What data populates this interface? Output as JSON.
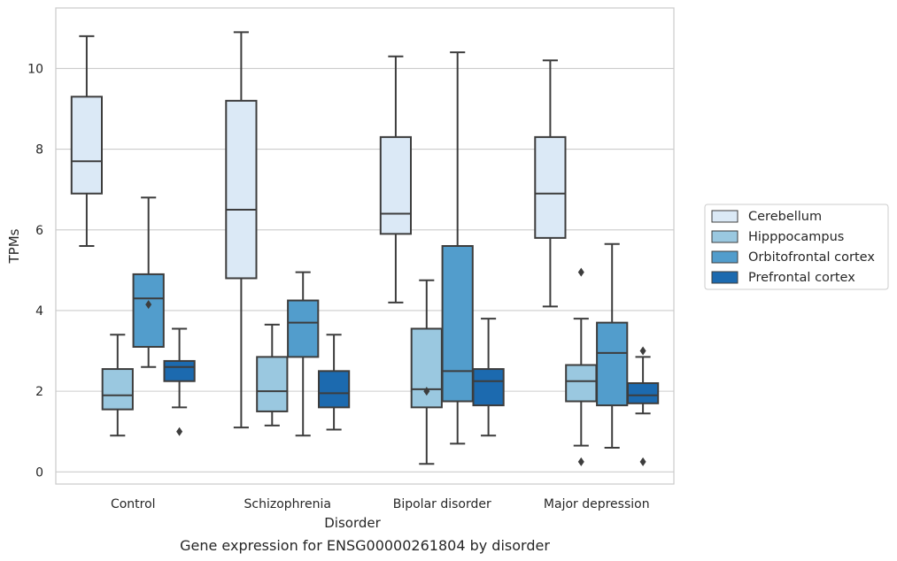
{
  "chart_data": {
    "type": "box",
    "title": "Gene expression for ENSG00000261804 by disorder",
    "xlabel": "Disorder",
    "ylabel": "TPMs",
    "ylim": [
      -0.3,
      11.5
    ],
    "yticks": [
      0,
      2,
      4,
      6,
      8,
      10
    ],
    "grid": "horizontal",
    "legend_position": "right",
    "categories": [
      "Control",
      "Schizophrenia",
      "Bipolar disorder",
      "Major depression"
    ],
    "series": [
      {
        "name": "Cerebellum",
        "color": "#dbe9f6",
        "boxes": [
          {
            "whislo": 5.6,
            "q1": 6.9,
            "med": 7.7,
            "q3": 9.3,
            "whishi": 10.8,
            "fliers": []
          },
          {
            "whislo": 1.1,
            "q1": 4.8,
            "med": 6.5,
            "q3": 9.2,
            "whishi": 10.9,
            "fliers": []
          },
          {
            "whislo": 4.2,
            "q1": 5.9,
            "med": 6.4,
            "q3": 8.3,
            "whishi": 10.3,
            "fliers": []
          },
          {
            "whislo": 4.1,
            "q1": 5.8,
            "med": 6.9,
            "q3": 8.3,
            "whishi": 10.2,
            "fliers": []
          }
        ]
      },
      {
        "name": "Hipppocampus",
        "color": "#9ac8e0",
        "boxes": [
          {
            "whislo": 0.9,
            "q1": 1.55,
            "med": 1.9,
            "q3": 2.55,
            "whishi": 3.4,
            "fliers": []
          },
          {
            "whislo": 1.15,
            "q1": 1.5,
            "med": 2.0,
            "q3": 2.85,
            "whishi": 3.65,
            "fliers": []
          },
          {
            "whislo": 0.2,
            "q1": 1.6,
            "med": 2.05,
            "q3": 3.55,
            "whishi": 4.75,
            "fliers": [
              2.0
            ]
          },
          {
            "whislo": 0.65,
            "q1": 1.75,
            "med": 2.25,
            "q3": 2.65,
            "whishi": 3.8,
            "fliers": [
              0.25,
              4.95
            ]
          }
        ]
      },
      {
        "name": "Orbitofrontal cortex",
        "color": "#529dcc",
        "boxes": [
          {
            "whislo": 2.6,
            "q1": 3.1,
            "med": 4.3,
            "q3": 4.9,
            "whishi": 6.8,
            "fliers": [
              4.15
            ]
          },
          {
            "whislo": 0.9,
            "q1": 2.85,
            "med": 3.7,
            "q3": 4.25,
            "whishi": 4.95,
            "fliers": []
          },
          {
            "whislo": 0.7,
            "q1": 1.75,
            "med": 2.5,
            "q3": 5.6,
            "whishi": 10.4,
            "fliers": []
          },
          {
            "whislo": 0.6,
            "q1": 1.65,
            "med": 2.95,
            "q3": 3.7,
            "whishi": 5.65,
            "fliers": []
          }
        ]
      },
      {
        "name": "Prefrontal cortex",
        "color": "#1c6aaf",
        "boxes": [
          {
            "whislo": 1.6,
            "q1": 2.25,
            "med": 2.6,
            "q3": 2.75,
            "whishi": 3.55,
            "fliers": [
              1.0
            ]
          },
          {
            "whislo": 1.05,
            "q1": 1.6,
            "med": 1.95,
            "q3": 2.5,
            "whishi": 3.4,
            "fliers": []
          },
          {
            "whislo": 0.9,
            "q1": 1.65,
            "med": 2.25,
            "q3": 2.55,
            "whishi": 3.8,
            "fliers": []
          },
          {
            "whislo": 1.45,
            "q1": 1.7,
            "med": 1.9,
            "q3": 2.2,
            "whishi": 2.85,
            "fliers": [
              0.25,
              3.0
            ]
          }
        ]
      }
    ]
  }
}
